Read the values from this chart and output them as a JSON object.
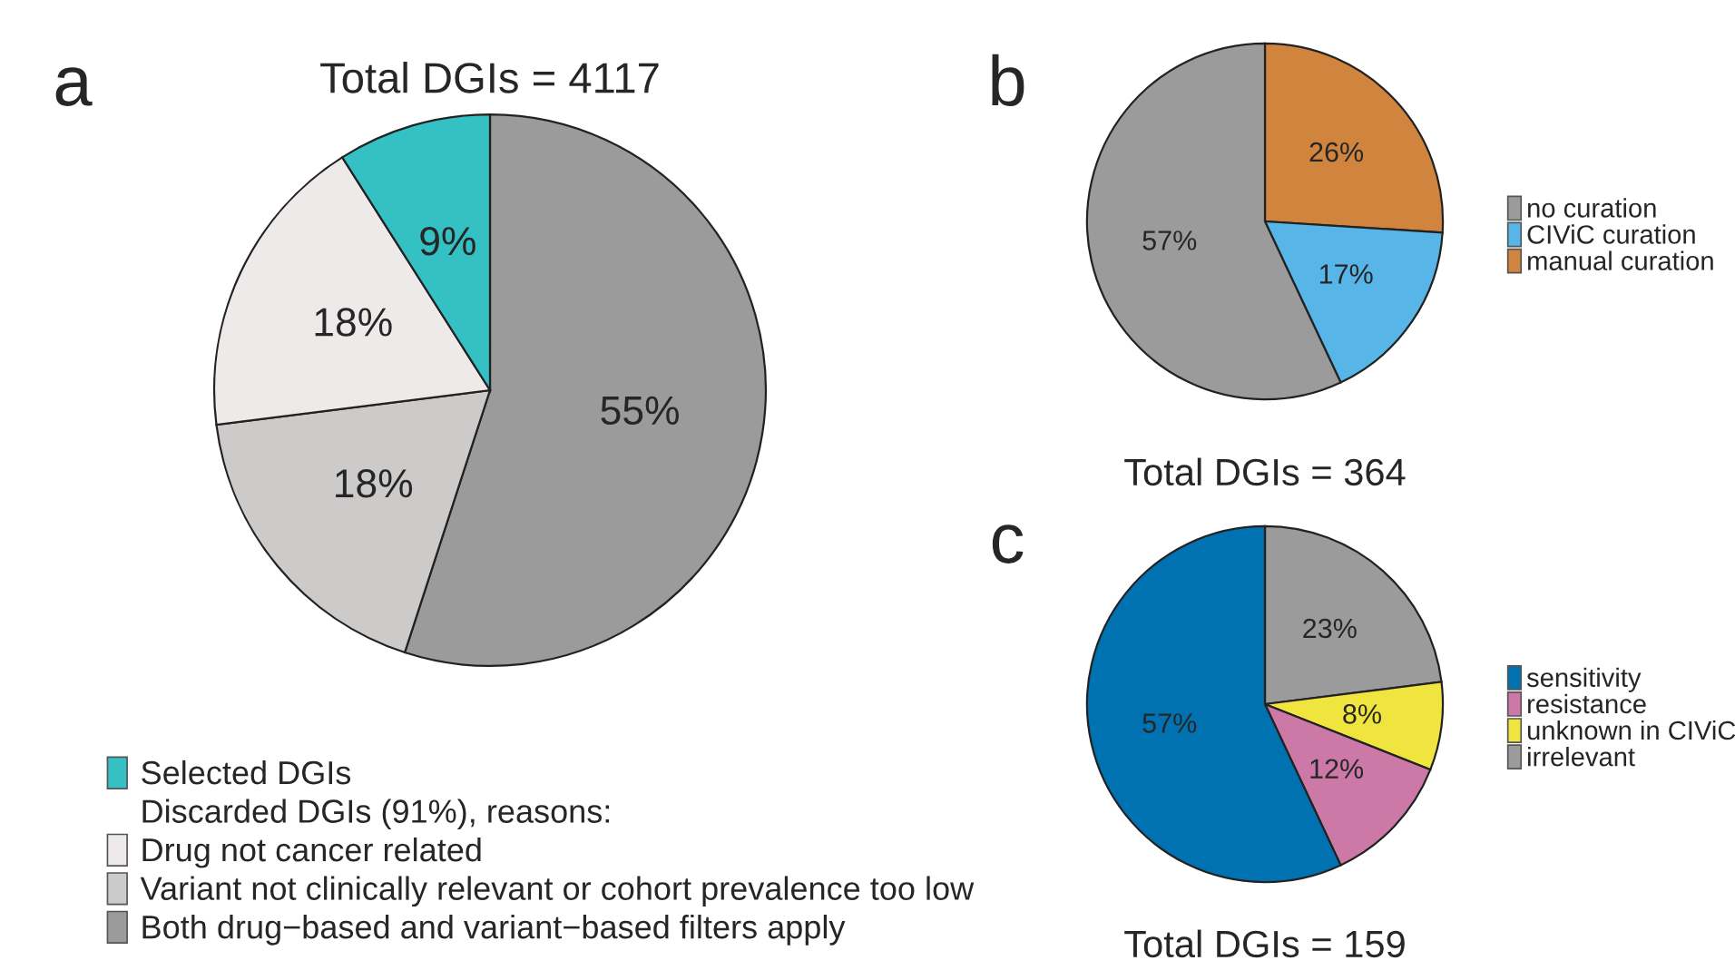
{
  "chart_data": [
    {
      "type": "pie",
      "title": "Total DGIs = 4117",
      "annotations": [
        "a"
      ],
      "legend": "bottom",
      "legend_title": "Discarded DGIs (91%), reasons:",
      "categories": [
        "Both drug−based and variant−based filters apply",
        "Variant not clinically relevant or cohort prevalence too low",
        "Drug not cancer related",
        "Selected DGIs"
      ],
      "values": [
        55,
        18,
        18,
        9
      ],
      "value_labels": [
        "55%",
        "18%",
        "18%",
        "9%"
      ],
      "colors": [
        "#9b9b9b",
        "#cdcaca",
        "#eeeaea",
        "#35c0c4"
      ]
    },
    {
      "type": "pie",
      "title": "Total DGIs = 364",
      "annotations": [
        "b"
      ],
      "legend": "right",
      "categories": [
        "manual curation",
        "CIViC curation",
        "no curation"
      ],
      "values": [
        26,
        17,
        57
      ],
      "value_labels": [
        "26%",
        "17%",
        "57%"
      ],
      "colors": [
        "#d0843e",
        "#57b5e8",
        "#9b9b9b"
      ]
    },
    {
      "type": "pie",
      "title": "Total DGIs = 159",
      "annotations": [
        "c"
      ],
      "legend": "right",
      "categories": [
        "irrelevant",
        "unknown in CIViC",
        "resistance",
        "sensitivity"
      ],
      "values": [
        23,
        8,
        12,
        57
      ],
      "value_labels": [
        "23%",
        "8%",
        "12%",
        "57%"
      ],
      "colors": [
        "#9b9b9b",
        "#f0e43e",
        "#cc79a7",
        "#0072b2"
      ]
    }
  ]
}
